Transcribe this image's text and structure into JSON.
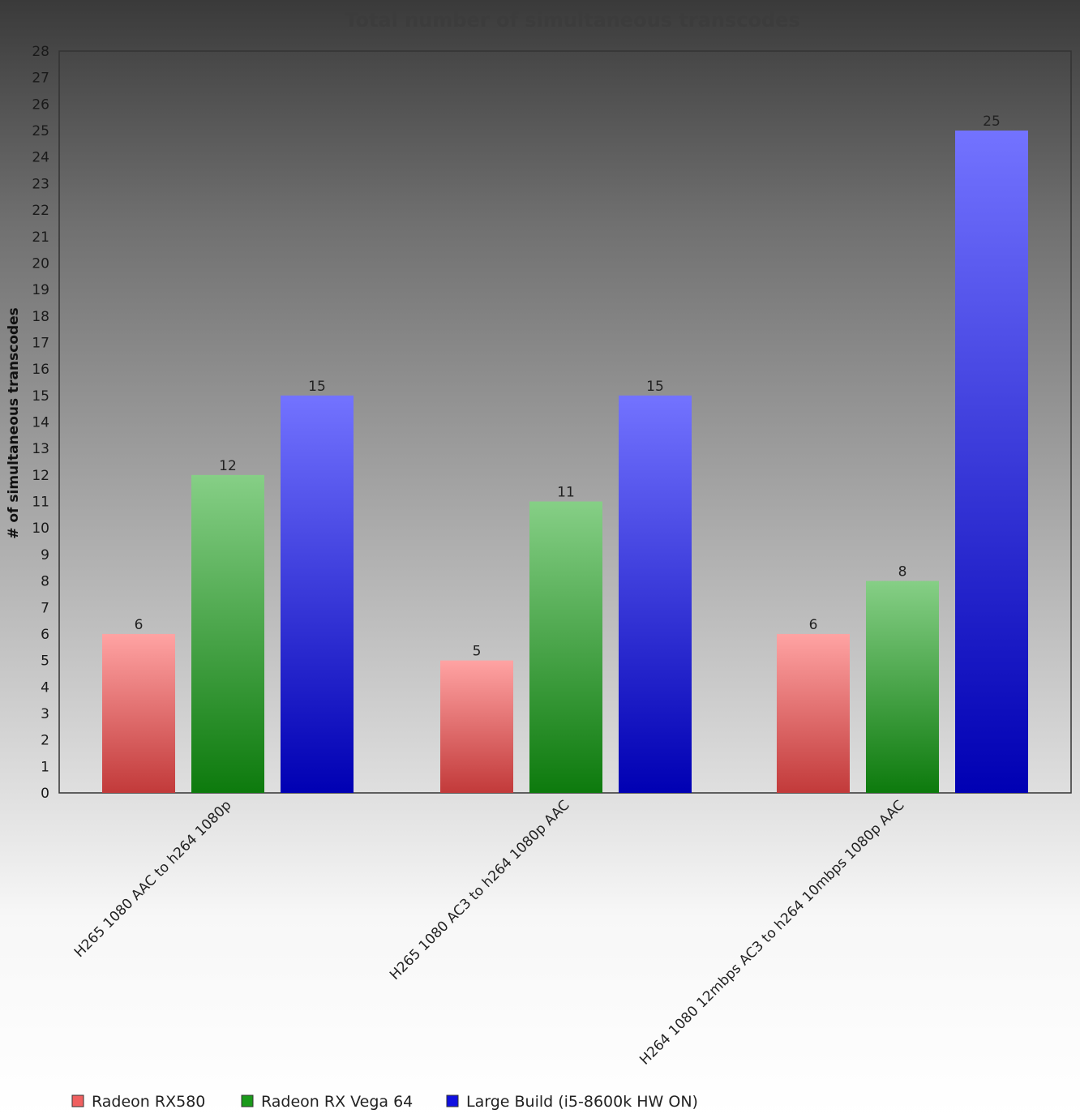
{
  "chart_data": {
    "type": "bar",
    "title": "Total number of simultaneous transcodes",
    "xlabel": "",
    "ylabel": "# of simultaneous transcodes",
    "ylim": [
      0,
      28
    ],
    "yticks": [
      0,
      1,
      2,
      3,
      4,
      5,
      6,
      7,
      8,
      9,
      10,
      11,
      12,
      13,
      14,
      15,
      16,
      17,
      18,
      19,
      20,
      21,
      22,
      23,
      24,
      25,
      26,
      27,
      28
    ],
    "grid": false,
    "legend_position": "bottom-left",
    "categories": [
      "H265 1080 AAC to h264 1080p",
      "H265 1080 AC3 to h264 1080p AAC",
      "H264 1080 12mbps AC3 to h264 10mbps 1080p AAC"
    ],
    "series": [
      {
        "name": "Radeon RX580",
        "values": [
          6,
          5,
          6
        ],
        "color_top": "#ffa3a3",
        "color_bottom": "#c23a3a",
        "legend_color": "#f06060"
      },
      {
        "name": "Radeon RX Vega 64",
        "values": [
          12,
          11,
          8
        ],
        "color_top": "#86cf86",
        "color_bottom": "#0d7a0d",
        "legend_color": "#1a9a1a"
      },
      {
        "name": "Large Build (i5-8600k HW ON)",
        "values": [
          15,
          15,
          25
        ],
        "color_top": "#7373ff",
        "color_bottom": "#0000b3",
        "legend_color": "#1010e0"
      }
    ]
  }
}
